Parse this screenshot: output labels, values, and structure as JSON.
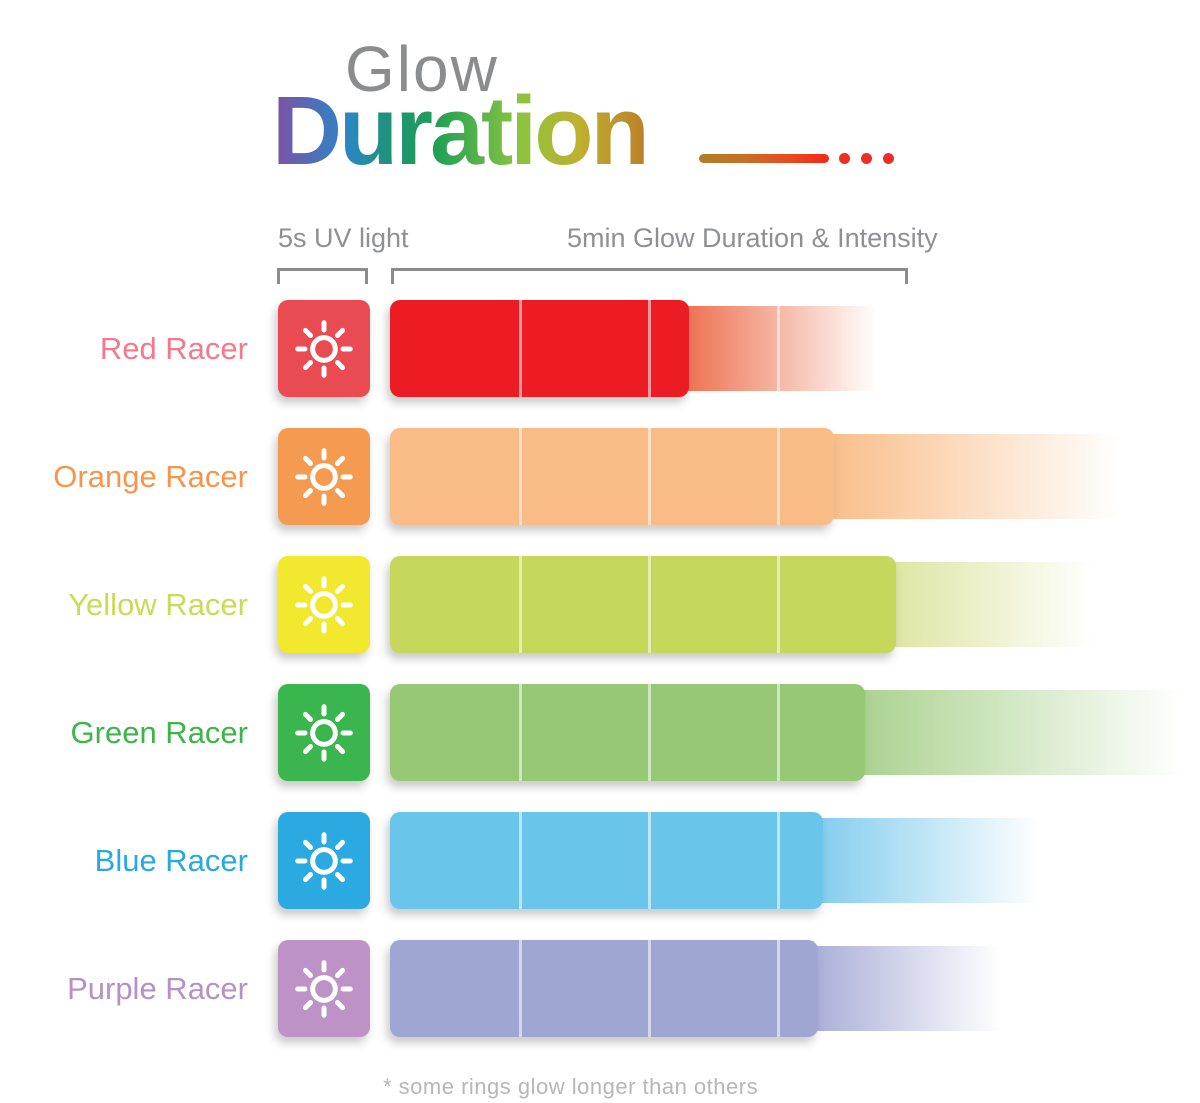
{
  "title": {
    "line1": "Glow",
    "line2": "Duration",
    "line1_color": "#8A8C8E",
    "line2_gradient": [
      "#8050A5",
      "#2B87C5",
      "#1D9374",
      "#21A055",
      "#8BC43F",
      "#BFB02F",
      "#BA7F29"
    ],
    "tail": {
      "line_gradient": [
        "#AF7E28",
        "#C86F26",
        "#E94A1F",
        "#EE2A1C"
      ],
      "dot_count": 3,
      "dot_color": "#EE2D24"
    }
  },
  "column_headers": {
    "uv_label": "5s UV light",
    "glow_label": "5min Glow Duration & Intensity",
    "text_color": "#8E9093"
  },
  "footnote": {
    "text": "* some rings glow longer than others",
    "color": "#B5B7B9"
  },
  "chart_data": {
    "type": "bar",
    "orientation": "horizontal",
    "title": "Glow Duration",
    "axis": {
      "uv_exposure_label": "5s UV light",
      "duration_scale_label": "5min Glow Duration & Intensity",
      "scale_minutes": 5,
      "segments": 4,
      "segment_minutes": 1.25
    },
    "rows": [
      {
        "label": "Red Racer",
        "solid_glow_minutes": 2.9,
        "fade_end_minutes": 4.8,
        "label_color": "#F4798D",
        "icon_color": "#EA4A52",
        "bar_color": "#EC1C24",
        "fade_color": "#EC6A47"
      },
      {
        "label": "Orange Racer",
        "solid_glow_minutes": 4.3,
        "fade_end_minutes": 7.2,
        "label_color": "#F6954C",
        "icon_color": "#F59B51",
        "bar_color": "#F9BC86",
        "fade_color": "#F9BC86"
      },
      {
        "label": "Yellow Racer",
        "solid_glow_minutes": 4.9,
        "fade_end_minutes": 6.9,
        "label_color": "#C9DB57",
        "icon_color": "#F2E82E",
        "bar_color": "#C6D75B",
        "fade_color": "#DCE49E"
      },
      {
        "label": "Green Racer",
        "solid_glow_minutes": 4.6,
        "fade_end_minutes": 7.8,
        "label_color": "#3CB54A",
        "icon_color": "#3BB54E",
        "bar_color": "#97C876",
        "fade_color": "#A9D18D"
      },
      {
        "label": "Blue Racer",
        "solid_glow_minutes": 4.2,
        "fade_end_minutes": 6.4,
        "label_color": "#29A9E1",
        "icon_color": "#2BAAE2",
        "bar_color": "#6AC5EB",
        "fade_color": "#7FCBED"
      },
      {
        "label": "Purple Racer",
        "solid_glow_minutes": 4.15,
        "fade_end_minutes": 6.0,
        "label_color": "#B691C4",
        "icon_color": "#BD93C7",
        "bar_color": "#9FA6D2",
        "fade_color": "#A6ABD6"
      }
    ],
    "note": "* some rings glow longer than others"
  }
}
